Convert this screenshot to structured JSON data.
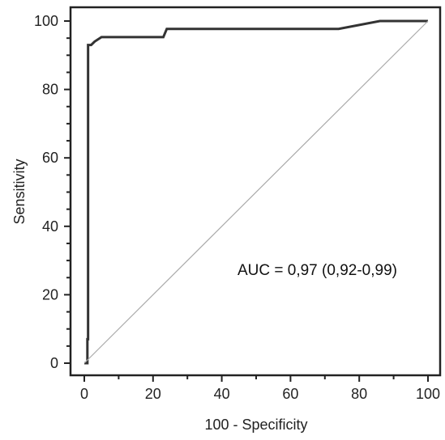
{
  "chart_data": {
    "type": "line",
    "xlabel": "100 - Specificity",
    "ylabel": "Sensitivity",
    "xlim": [
      0,
      100
    ],
    "ylim": [
      0,
      100
    ],
    "x_ticks": [
      0,
      20,
      40,
      60,
      80,
      100
    ],
    "y_ticks": [
      0,
      20,
      40,
      60,
      80,
      100
    ],
    "grid": false,
    "series": [
      {
        "role": "roc",
        "color": "#333333",
        "x": [
          0,
          0.9,
          0.9,
          1.1,
          1.1,
          2.0,
          3.0,
          5.0,
          23.0,
          24.0,
          74.0,
          86.0,
          100.0
        ],
        "y": [
          0,
          0,
          7,
          7,
          93,
          93,
          94,
          95.3,
          95.3,
          97.7,
          97.7,
          100,
          100
        ]
      },
      {
        "role": "reference",
        "color": "#aaaaaa",
        "x": [
          0,
          100
        ],
        "y": [
          0,
          100
        ]
      }
    ],
    "annotation": "AUC = 0,97 (0,92-0,99)"
  }
}
